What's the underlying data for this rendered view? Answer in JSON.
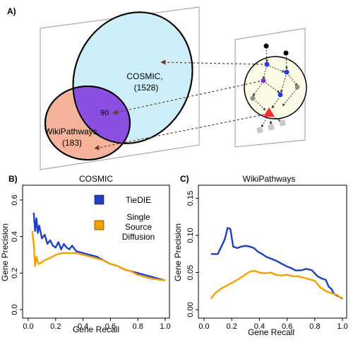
{
  "panel_a": {
    "label": "A)",
    "cosmic_label": "COSMIC,",
    "cosmic_count": "(1528)",
    "overlap_count": "90",
    "wikipathways_label": "WikiPathways,",
    "wikipathways_count": "(183)",
    "colors": {
      "cosmic_fill": "#cdeef8",
      "wikipathways_fill": "#f4b39a",
      "overlap_fill": "#8a4fe0",
      "network_fill": "#fbfbe6",
      "plane_fill": "#ffffff",
      "node_blue": "#1f3fe0",
      "node_purple": "#8a2be2",
      "node_gray": "#8c8c8c",
      "target_red": "#f03030"
    }
  },
  "chart_data": [
    {
      "panel_label": "B)",
      "type": "line",
      "title": "COSMIC",
      "xlabel": "Gene Recall",
      "ylabel": "Gene Precision",
      "xlim": [
        0,
        1
      ],
      "ylim": [
        0,
        0.65
      ],
      "xticks": [
        "0.0",
        "0.2",
        "0.4",
        "0.6",
        "0.8",
        "1.0"
      ],
      "xtick_values": [
        0.0,
        0.2,
        0.4,
        0.6,
        0.8,
        1.0
      ],
      "yticks": [
        "0.0",
        "0.2",
        "0.4",
        "0.6"
      ],
      "ytick_values": [
        0.0,
        0.2,
        0.4,
        0.6
      ],
      "legend": "top-right",
      "series": [
        {
          "name": "TieDIE",
          "color": "#1f3fbf",
          "points": [
            [
              0.04,
              0.53
            ],
            [
              0.05,
              0.43
            ],
            [
              0.06,
              0.5
            ],
            [
              0.07,
              0.42
            ],
            [
              0.08,
              0.46
            ],
            [
              0.1,
              0.39
            ],
            [
              0.12,
              0.41
            ],
            [
              0.14,
              0.36
            ],
            [
              0.16,
              0.38
            ],
            [
              0.18,
              0.35
            ],
            [
              0.2,
              0.34
            ],
            [
              0.22,
              0.37
            ],
            [
              0.24,
              0.33
            ],
            [
              0.26,
              0.36
            ],
            [
              0.28,
              0.34
            ],
            [
              0.3,
              0.33
            ],
            [
              0.32,
              0.35
            ],
            [
              0.35,
              0.32
            ],
            [
              0.4,
              0.31
            ],
            [
              0.45,
              0.3
            ],
            [
              0.5,
              0.29
            ],
            [
              0.55,
              0.27
            ],
            [
              0.6,
              0.25
            ],
            [
              0.65,
              0.24
            ],
            [
              0.7,
              0.22
            ],
            [
              0.75,
              0.21
            ],
            [
              0.8,
              0.2
            ],
            [
              0.85,
              0.19
            ],
            [
              0.9,
              0.18
            ],
            [
              0.95,
              0.17
            ],
            [
              1.0,
              0.16
            ]
          ]
        },
        {
          "name": "Single Source Diffusion",
          "color": "#f5a000",
          "points": [
            [
              0.03,
              0.43
            ],
            [
              0.04,
              0.36
            ],
            [
              0.05,
              0.24
            ],
            [
              0.06,
              0.29
            ],
            [
              0.07,
              0.26
            ],
            [
              0.08,
              0.25
            ],
            [
              0.1,
              0.26
            ],
            [
              0.12,
              0.27
            ],
            [
              0.15,
              0.28
            ],
            [
              0.18,
              0.29
            ],
            [
              0.2,
              0.3
            ],
            [
              0.25,
              0.31
            ],
            [
              0.3,
              0.31
            ],
            [
              0.35,
              0.31
            ],
            [
              0.4,
              0.3
            ],
            [
              0.45,
              0.29
            ],
            [
              0.5,
              0.28
            ],
            [
              0.55,
              0.27
            ],
            [
              0.6,
              0.25
            ],
            [
              0.65,
              0.24
            ],
            [
              0.7,
              0.22
            ],
            [
              0.75,
              0.21
            ],
            [
              0.8,
              0.19
            ],
            [
              0.85,
              0.18
            ],
            [
              0.9,
              0.17
            ],
            [
              0.95,
              0.165
            ],
            [
              1.0,
              0.16
            ]
          ]
        }
      ],
      "legend_lines": [
        [
          "TieDIE"
        ],
        [
          "Single",
          "Source",
          "Diffusion"
        ]
      ]
    },
    {
      "panel_label": "C)",
      "type": "line",
      "title": "WikiPathways",
      "xlabel": "Gene Recall",
      "ylabel": "Gene Precision",
      "xlim": [
        0,
        1
      ],
      "ylim": [
        0,
        0.16
      ],
      "xticks": [
        "0.0",
        "0.2",
        "0.4",
        "0.6",
        "0.8",
        "1.0"
      ],
      "xtick_values": [
        0.0,
        0.2,
        0.4,
        0.6,
        0.8,
        1.0
      ],
      "yticks": [
        "0.00",
        "0.05",
        "0.10",
        "0.15"
      ],
      "ytick_values": [
        0.0,
        0.05,
        0.1,
        0.15
      ],
      "series": [
        {
          "name": "TieDIE",
          "color": "#1f3fbf",
          "points": [
            [
              0.05,
              0.075
            ],
            [
              0.1,
              0.075
            ],
            [
              0.15,
              0.095
            ],
            [
              0.17,
              0.11
            ],
            [
              0.19,
              0.109
            ],
            [
              0.21,
              0.085
            ],
            [
              0.24,
              0.083
            ],
            [
              0.27,
              0.085
            ],
            [
              0.3,
              0.086
            ],
            [
              0.33,
              0.085
            ],
            [
              0.36,
              0.083
            ],
            [
              0.39,
              0.078
            ],
            [
              0.42,
              0.075
            ],
            [
              0.45,
              0.071
            ],
            [
              0.48,
              0.069
            ],
            [
              0.52,
              0.066
            ],
            [
              0.56,
              0.062
            ],
            [
              0.6,
              0.058
            ],
            [
              0.63,
              0.056
            ],
            [
              0.66,
              0.053
            ],
            [
              0.7,
              0.053
            ],
            [
              0.74,
              0.055
            ],
            [
              0.78,
              0.053
            ],
            [
              0.82,
              0.045
            ],
            [
              0.85,
              0.042
            ],
            [
              0.88,
              0.04
            ],
            [
              0.9,
              0.031
            ],
            [
              0.92,
              0.028
            ],
            [
              0.94,
              0.021
            ],
            [
              0.96,
              0.019
            ],
            [
              0.98,
              0.017
            ],
            [
              1.0,
              0.015
            ]
          ]
        },
        {
          "name": "Single Source Diffusion",
          "color": "#f5a000",
          "points": [
            [
              0.05,
              0.015
            ],
            [
              0.08,
              0.022
            ],
            [
              0.12,
              0.028
            ],
            [
              0.16,
              0.032
            ],
            [
              0.2,
              0.036
            ],
            [
              0.24,
              0.04
            ],
            [
              0.28,
              0.045
            ],
            [
              0.31,
              0.049
            ],
            [
              0.34,
              0.052
            ],
            [
              0.37,
              0.052
            ],
            [
              0.4,
              0.05
            ],
            [
              0.44,
              0.049
            ],
            [
              0.48,
              0.05
            ],
            [
              0.52,
              0.047
            ],
            [
              0.56,
              0.046
            ],
            [
              0.6,
              0.047
            ],
            [
              0.64,
              0.045
            ],
            [
              0.68,
              0.045
            ],
            [
              0.72,
              0.043
            ],
            [
              0.76,
              0.041
            ],
            [
              0.8,
              0.039
            ],
            [
              0.84,
              0.03
            ],
            [
              0.88,
              0.025
            ],
            [
              0.92,
              0.022
            ],
            [
              0.96,
              0.02
            ],
            [
              1.0,
              0.014
            ]
          ]
        }
      ]
    }
  ]
}
